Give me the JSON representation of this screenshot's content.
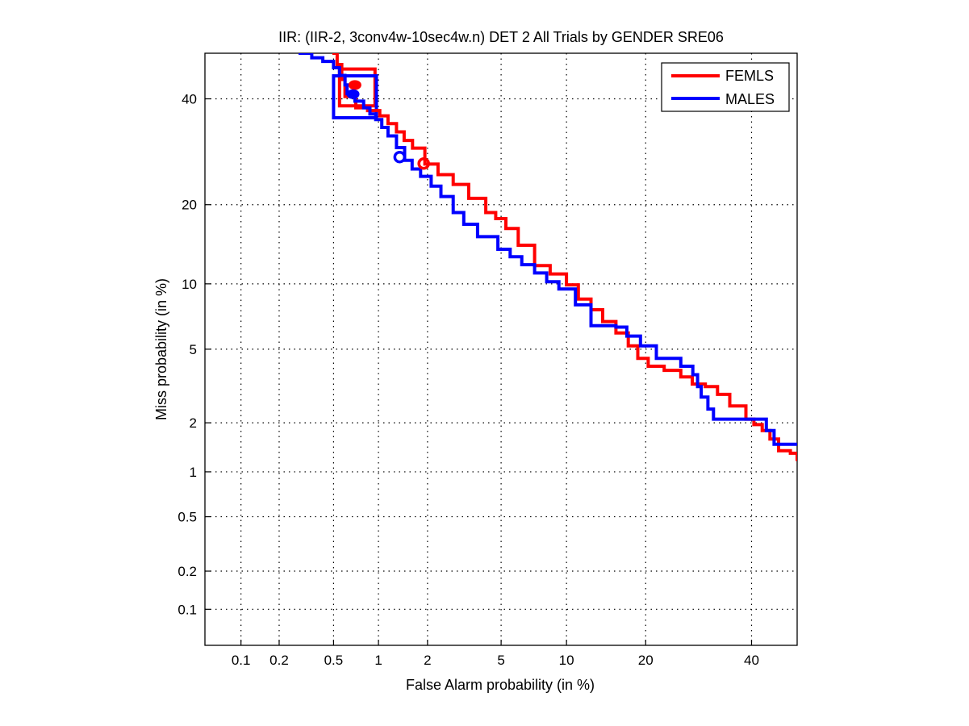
{
  "chart_data": {
    "type": "line",
    "scale": "probit (normal deviate) on both axes, DET curve",
    "title": "IIR: (IIR-2, 3conv4w-10sec4w.n) DET 2 All Trials by GENDER SRE06",
    "xlabel": "False Alarm probability (in %)",
    "ylabel": "Miss probability (in %)",
    "xlim": [
      0.05,
      50
    ],
    "ylim": [
      0.05,
      50
    ],
    "x_ticks": [
      0.1,
      0.2,
      0.5,
      1,
      2,
      5,
      10,
      20,
      40
    ],
    "x_tick_labels": [
      "0.1",
      "0.2",
      "0.5",
      "1",
      "2",
      "5",
      "10",
      "20",
      "40"
    ],
    "y_ticks": [
      0.1,
      0.2,
      0.5,
      1,
      2,
      5,
      10,
      20,
      40
    ],
    "y_tick_labels": [
      "0.1",
      "0.2",
      "0.5",
      "1",
      "2",
      "5",
      "10",
      "20",
      "40"
    ],
    "grid": true,
    "legend_position": "top-right",
    "series": [
      {
        "name": "FEMLS",
        "color": "#ff0000",
        "points": [
          [
            0.49,
            50.0
          ],
          [
            0.53,
            47.5
          ],
          [
            0.57,
            44.2
          ],
          [
            0.6,
            40.5
          ],
          [
            0.71,
            38.1
          ],
          [
            0.85,
            37.5
          ],
          [
            1.02,
            36.4
          ],
          [
            1.15,
            34.8
          ],
          [
            1.3,
            33.1
          ],
          [
            1.45,
            31.4
          ],
          [
            1.63,
            29.9
          ],
          [
            1.93,
            26.9
          ],
          [
            2.3,
            25.0
          ],
          [
            2.8,
            23.3
          ],
          [
            3.4,
            21.0
          ],
          [
            4.18,
            18.8
          ],
          [
            4.7,
            17.9
          ],
          [
            5.28,
            16.5
          ],
          [
            6.06,
            14.3
          ],
          [
            7.23,
            11.9
          ],
          [
            8.5,
            11.0
          ],
          [
            10.0,
            9.9
          ],
          [
            11.2,
            8.6
          ],
          [
            12.6,
            7.7
          ],
          [
            14.0,
            6.8
          ],
          [
            15.7,
            6.0
          ],
          [
            17.4,
            5.2
          ],
          [
            18.8,
            4.5
          ],
          [
            20.4,
            4.1
          ],
          [
            23.0,
            3.9
          ],
          [
            25.9,
            3.6
          ],
          [
            28.0,
            3.3
          ],
          [
            30.5,
            3.2
          ],
          [
            32.9,
            2.9
          ],
          [
            35.4,
            2.5
          ],
          [
            38.8,
            2.1
          ],
          [
            40.5,
            1.95
          ],
          [
            42.3,
            1.8
          ],
          [
            44.0,
            1.6
          ],
          [
            45.9,
            1.36
          ],
          [
            48.5,
            1.31
          ],
          [
            50.0,
            1.2
          ],
          [
            50.9,
            1.1
          ]
        ],
        "actual_decision_point": [
          1.9,
          27.0
        ],
        "min_dcf_point": [
          0.7,
          43.0
        ]
      },
      {
        "name": "MALES",
        "color": "#0000ff",
        "points": [
          [
            0.28,
            50.0
          ],
          [
            0.35,
            49.0
          ],
          [
            0.42,
            48.2
          ],
          [
            0.5,
            46.8
          ],
          [
            0.55,
            45.1
          ],
          [
            0.6,
            43.0
          ],
          [
            0.62,
            41.1
          ],
          [
            0.7,
            39.5
          ],
          [
            0.8,
            38.1
          ],
          [
            0.88,
            36.8
          ],
          [
            0.96,
            35.6
          ],
          [
            1.05,
            34.0
          ],
          [
            1.15,
            32.3
          ],
          [
            1.3,
            30.0
          ],
          [
            1.46,
            27.6
          ],
          [
            1.62,
            26.0
          ],
          [
            1.82,
            24.7
          ],
          [
            2.1,
            23.0
          ],
          [
            2.39,
            21.3
          ],
          [
            2.8,
            18.8
          ],
          [
            3.2,
            17.1
          ],
          [
            3.79,
            15.4
          ],
          [
            4.82,
            13.8
          ],
          [
            5.54,
            12.9
          ],
          [
            6.3,
            12.0
          ],
          [
            7.23,
            11.1
          ],
          [
            8.2,
            10.2
          ],
          [
            9.28,
            9.5
          ],
          [
            10.9,
            8.1
          ],
          [
            12.6,
            6.5
          ],
          [
            15.7,
            6.4
          ],
          [
            17.2,
            5.8
          ],
          [
            19.2,
            5.2
          ],
          [
            21.7,
            4.5
          ],
          [
            25.9,
            4.1
          ],
          [
            28.1,
            3.7
          ],
          [
            29.0,
            3.2
          ],
          [
            29.7,
            2.8
          ],
          [
            31.0,
            2.4
          ],
          [
            32.1,
            2.1
          ],
          [
            41.4,
            2.1
          ],
          [
            43.2,
            1.8
          ],
          [
            44.9,
            1.49
          ],
          [
            50.9,
            1.49
          ]
        ],
        "actual_decision_point": [
          1.36,
          28.2
        ],
        "min_dcf_point": [
          0.68,
          41.0
        ]
      }
    ],
    "annotations": [
      {
        "type": "square",
        "series": "FEMLS",
        "x_range": [
          0.55,
          0.95
        ],
        "y_range": [
          38.5,
          46.5
        ]
      },
      {
        "type": "square",
        "series": "MALES",
        "x_range": [
          0.5,
          0.97
        ],
        "y_range": [
          36.0,
          45.0
        ]
      }
    ]
  }
}
